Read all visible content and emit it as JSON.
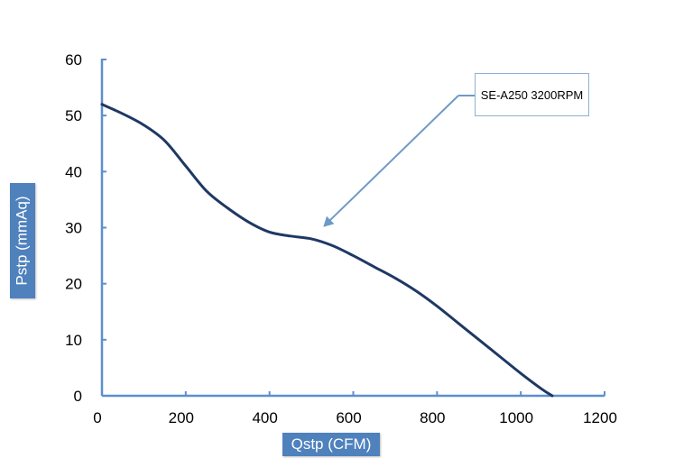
{
  "chart_data": {
    "type": "line",
    "title": "",
    "xlabel": "Qstp (CFM)",
    "ylabel": "Pstp (mmAq)",
    "xlim": [
      0,
      1200
    ],
    "ylim": [
      0,
      60
    ],
    "xticks": [
      "0",
      "200",
      "400",
      "600",
      "800",
      "1000",
      "1200"
    ],
    "yticks": [
      "0",
      "10",
      "20",
      "30",
      "40",
      "50",
      "60"
    ],
    "grid": false,
    "series": [
      {
        "name": "SE-A250 3200RPM",
        "color": "#1f3864",
        "x": [
          0,
          50,
          100,
          150,
          200,
          250,
          300,
          350,
          400,
          450,
          500,
          550,
          600,
          650,
          700,
          750,
          800,
          850,
          900,
          950,
          1000,
          1050,
          1075
        ],
        "y": [
          52,
          50.3,
          48.3,
          45.5,
          41,
          36.5,
          33.5,
          31,
          29.2,
          28.5,
          28,
          26.8,
          25,
          23,
          21,
          18.7,
          16,
          13,
          10,
          7,
          4,
          1.2,
          0
        ]
      }
    ],
    "annotations": [
      {
        "text": "SE-A250 3200RPM",
        "target": {
          "x": 550,
          "y": 29
        }
      }
    ],
    "accent_color": "#4f81bd",
    "axis_color": "#5b8fcf"
  }
}
